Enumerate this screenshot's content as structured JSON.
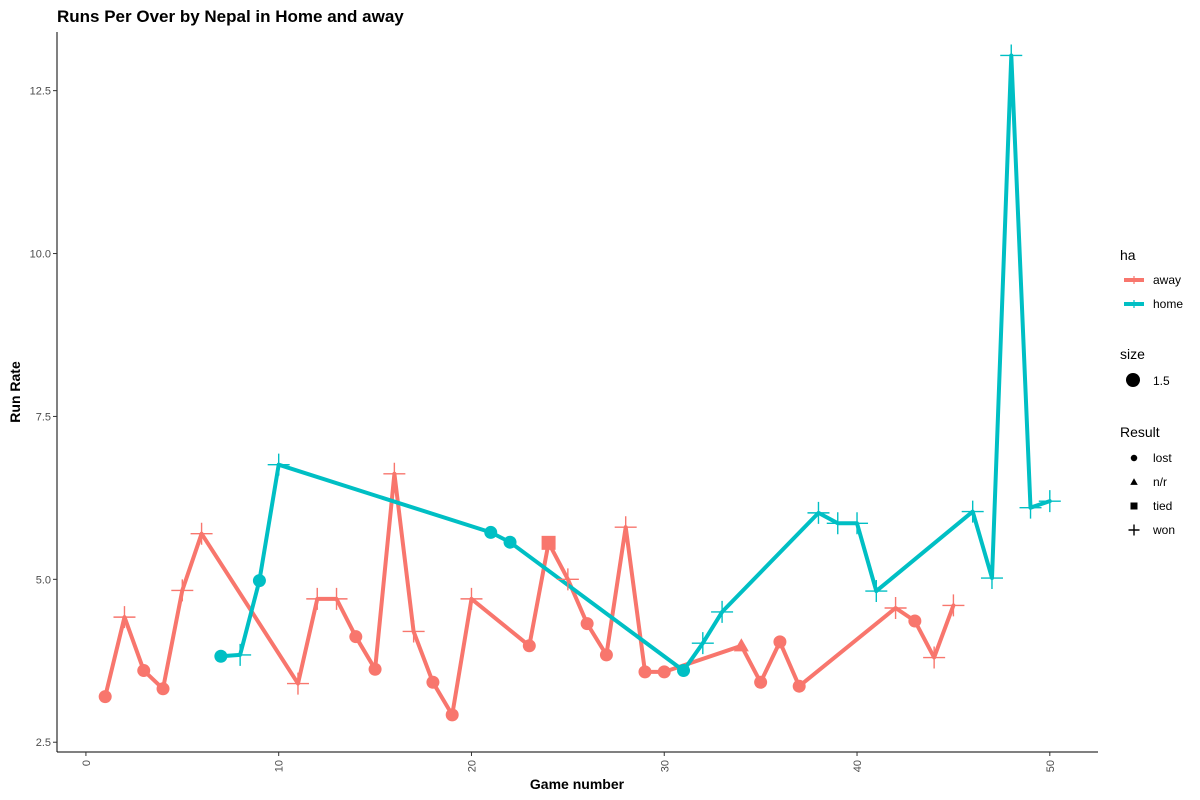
{
  "chart_data": {
    "type": "line",
    "title": "Runs Per Over by Nepal in Home and away",
    "xlabel": "Game number",
    "ylabel": "Run Rate",
    "xlim": [
      -1.5,
      52.5
    ],
    "ylim": [
      2.35,
      13.4
    ],
    "xticks": [
      0,
      10,
      20,
      30,
      40,
      50
    ],
    "yticks": [
      2.5,
      5.0,
      7.5,
      10.0,
      12.5
    ],
    "xtick_labels": [
      "0",
      "10",
      "20",
      "30",
      "40",
      "50"
    ],
    "ytick_labels": [
      "2.5",
      "5.0",
      "7.5",
      "10.0",
      "12.5"
    ],
    "grid": false,
    "legend_position": "right",
    "legend": {
      "color_title": "ha",
      "size_title": "size",
      "size_label": "1.5",
      "shape_title": "Result",
      "shapes": [
        {
          "shape": "circle",
          "label": "lost"
        },
        {
          "shape": "triangle",
          "label": "n/r"
        },
        {
          "shape": "square",
          "label": "tied"
        },
        {
          "shape": "plus",
          "label": "won"
        }
      ]
    },
    "series": [
      {
        "name": "away",
        "color": "#F8766D",
        "points": [
          {
            "x": 1,
            "y": 3.2,
            "r": "lost"
          },
          {
            "x": 2,
            "y": 4.42,
            "r": "won"
          },
          {
            "x": 3,
            "y": 3.6,
            "r": "lost"
          },
          {
            "x": 4,
            "y": 3.32,
            "r": "lost"
          },
          {
            "x": 5,
            "y": 4.83,
            "r": "won"
          },
          {
            "x": 6,
            "y": 5.7,
            "r": "won"
          },
          {
            "x": 11,
            "y": 3.4,
            "r": "won"
          },
          {
            "x": 12,
            "y": 4.7,
            "r": "won"
          },
          {
            "x": 13,
            "y": 4.7,
            "r": "won"
          },
          {
            "x": 14,
            "y": 4.12,
            "r": "lost"
          },
          {
            "x": 15,
            "y": 3.62,
            "r": "lost"
          },
          {
            "x": 16,
            "y": 6.62,
            "r": "won"
          },
          {
            "x": 17,
            "y": 4.2,
            "r": "won"
          },
          {
            "x": 18,
            "y": 3.42,
            "r": "lost"
          },
          {
            "x": 19,
            "y": 2.92,
            "r": "lost"
          },
          {
            "x": 20,
            "y": 4.7,
            "r": "won"
          },
          {
            "x": 23,
            "y": 3.98,
            "r": "lost"
          },
          {
            "x": 24,
            "y": 5.56,
            "r": "tied"
          },
          {
            "x": 25,
            "y": 5.0,
            "r": "won"
          },
          {
            "x": 26,
            "y": 4.32,
            "r": "lost"
          },
          {
            "x": 27,
            "y": 3.84,
            "r": "lost"
          },
          {
            "x": 28,
            "y": 5.8,
            "r": "won"
          },
          {
            "x": 29,
            "y": 3.58,
            "r": "lost"
          },
          {
            "x": 30,
            "y": 3.58,
            "r": "lost"
          },
          {
            "x": 34,
            "y": 3.98,
            "r": "n/r"
          },
          {
            "x": 35,
            "y": 3.42,
            "r": "lost"
          },
          {
            "x": 36,
            "y": 4.04,
            "r": "lost"
          },
          {
            "x": 37,
            "y": 3.36,
            "r": "lost"
          },
          {
            "x": 42,
            "y": 4.56,
            "r": "won"
          },
          {
            "x": 43,
            "y": 4.36,
            "r": "lost"
          },
          {
            "x": 44,
            "y": 3.8,
            "r": "won"
          },
          {
            "x": 45,
            "y": 4.6,
            "r": "won"
          }
        ]
      },
      {
        "name": "home",
        "color": "#00BFC4",
        "points": [
          {
            "x": 7,
            "y": 3.82,
            "r": "lost"
          },
          {
            "x": 8,
            "y": 3.84,
            "r": "won"
          },
          {
            "x": 9,
            "y": 4.98,
            "r": "lost"
          },
          {
            "x": 10,
            "y": 6.76,
            "r": "won"
          },
          {
            "x": 21,
            "y": 5.72,
            "r": "lost"
          },
          {
            "x": 22,
            "y": 5.57,
            "r": "lost"
          },
          {
            "x": 31,
            "y": 3.6,
            "r": "lost"
          },
          {
            "x": 32,
            "y": 4.02,
            "r": "won"
          },
          {
            "x": 33,
            "y": 4.5,
            "r": "won"
          },
          {
            "x": 38,
            "y": 6.02,
            "r": "won"
          },
          {
            "x": 39,
            "y": 5.86,
            "r": "won"
          },
          {
            "x": 40,
            "y": 5.86,
            "r": "won"
          },
          {
            "x": 41,
            "y": 4.82,
            "r": "won"
          },
          {
            "x": 46,
            "y": 6.04,
            "r": "won"
          },
          {
            "x": 47,
            "y": 5.02,
            "r": "won"
          },
          {
            "x": 48,
            "y": 13.04,
            "r": "won"
          },
          {
            "x": 49,
            "y": 6.1,
            "r": "won"
          },
          {
            "x": 50,
            "y": 6.2,
            "r": "won"
          }
        ]
      }
    ]
  }
}
